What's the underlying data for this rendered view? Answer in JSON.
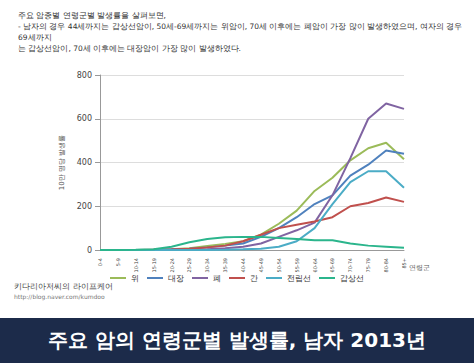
{
  "header": {
    "lines": [
      "주요 암종별 연령군별 발생률을 살펴보면,",
      "- 남자의 경우 44세까지는 갑상선암이, 50세-69세까지는 위암이, 70세 이후에는 폐암이 가장 많이 발생하였으며, 여자의 경우 69세까지",
      "는 갑상선암이, 70세 이후에는 대장암이 가장 많이 발생하였다."
    ]
  },
  "watermark": {
    "name": "키다리아저씨의 라이프케어",
    "url": "http://blog.naver.com/kumdoo"
  },
  "banner": {
    "text": "주요 암의 연령군별 발생률, 남자 2013년"
  },
  "chart_data": {
    "type": "line",
    "x_label": "연령군",
    "y_label": "10만 명당 발생률",
    "categories": [
      "0-4",
      "5-9",
      "10-14",
      "15-19",
      "20-24",
      "25-29",
      "30-34",
      "35-39",
      "40-44",
      "45-49",
      "50-54",
      "55-59",
      "60-64",
      "65-69",
      "70-74",
      "75-79",
      "80-84",
      "85+"
    ],
    "series": [
      {
        "name": "위",
        "color": "#9bbb59",
        "values": [
          0,
          0,
          0,
          1,
          3,
          8,
          18,
          28,
          40,
          70,
          120,
          180,
          270,
          330,
          410,
          465,
          490,
          415
        ]
      },
      {
        "name": "대장",
        "color": "#4f81bd",
        "values": [
          0,
          0,
          0,
          1,
          3,
          6,
          12,
          20,
          30,
          60,
          100,
          150,
          210,
          250,
          340,
          390,
          455,
          440
        ]
      },
      {
        "name": "폐",
        "color": "#8064a2",
        "values": [
          0,
          0,
          0,
          0,
          1,
          2,
          4,
          8,
          15,
          30,
          60,
          90,
          125,
          250,
          420,
          600,
          670,
          645
        ]
      },
      {
        "name": "간",
        "color": "#c0504d",
        "values": [
          0,
          0,
          0,
          1,
          2,
          6,
          12,
          20,
          40,
          70,
          100,
          115,
          130,
          150,
          200,
          215,
          240,
          220
        ]
      },
      {
        "name": "전립선",
        "color": "#4bacc6",
        "values": [
          0,
          0,
          0,
          0,
          0,
          0,
          0,
          1,
          3,
          6,
          15,
          40,
          100,
          210,
          310,
          360,
          360,
          285
        ]
      },
      {
        "name": "갑상선",
        "color": "#2bb58c",
        "values": [
          0,
          0,
          1,
          3,
          15,
          35,
          50,
          58,
          60,
          60,
          55,
          50,
          45,
          45,
          30,
          20,
          15,
          10
        ]
      }
    ],
    "ylim": [
      0,
      800
    ],
    "yticks": [
      0,
      200,
      400,
      600,
      800
    ],
    "grid": true,
    "legend": "bottom"
  }
}
